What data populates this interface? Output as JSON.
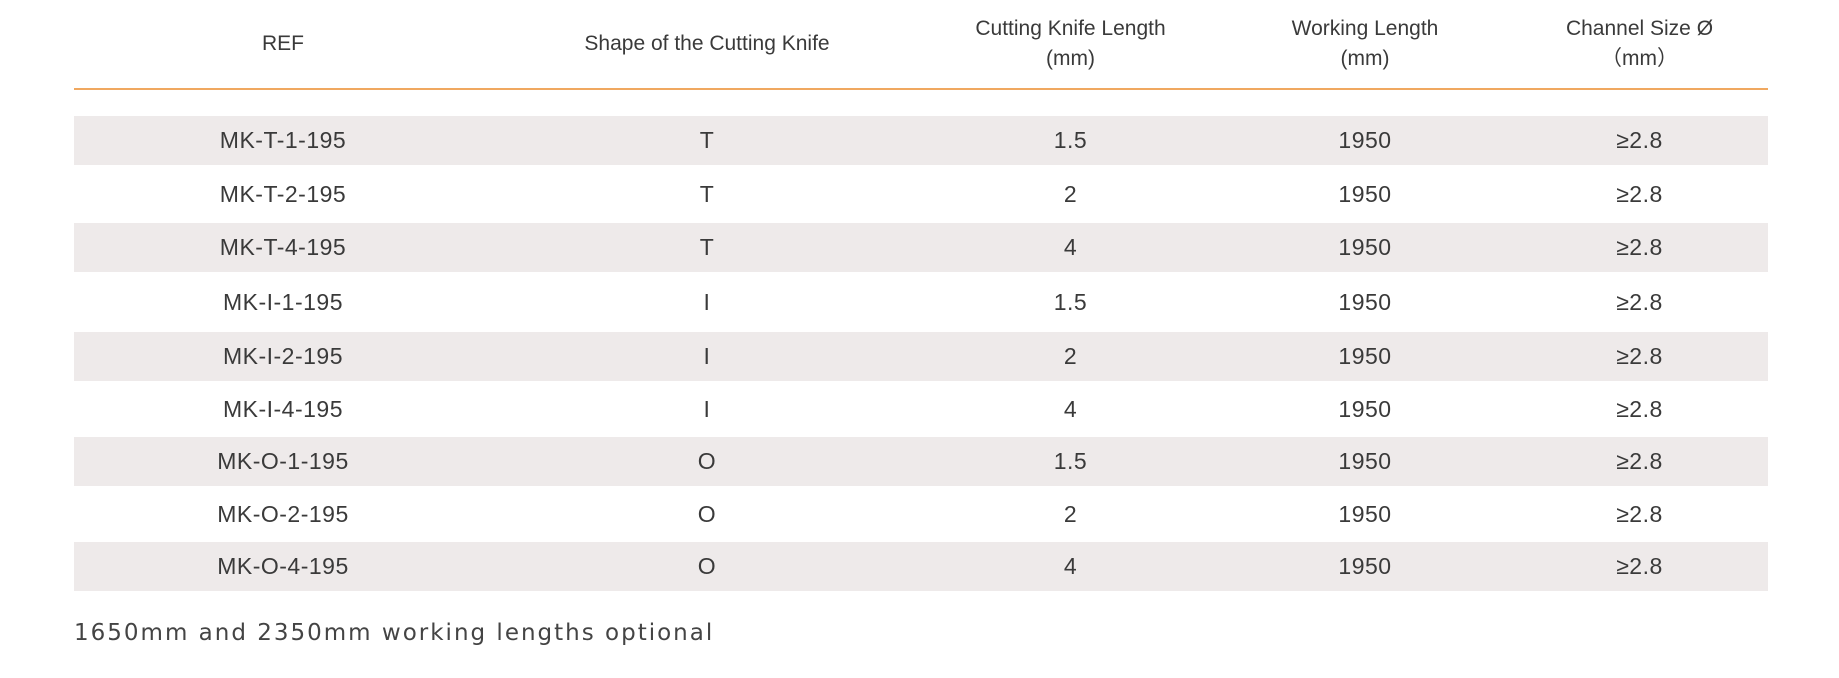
{
  "table": {
    "headers": [
      "REF",
      "Shape of the Cutting Knife",
      "Cutting Knife Length\n(mm)",
      "Working Length\n(mm)",
      "Channel Size Ø\n（mm）"
    ],
    "rows": [
      [
        "MK-T-1-195",
        "T",
        "1.5",
        "1950",
        "≥2.8"
      ],
      [
        "MK-T-2-195",
        "T",
        "2",
        "1950",
        "≥2.8"
      ],
      [
        "MK-T-4-195",
        "T",
        "4",
        "1950",
        "≥2.8"
      ],
      [
        "MK-I-1-195",
        "I",
        "1.5",
        "1950",
        "≥2.8"
      ],
      [
        "MK-I-2-195",
        "I",
        "2",
        "1950",
        "≥2.8"
      ],
      [
        "MK-I-4-195",
        "I",
        "4",
        "1950",
        "≥2.8"
      ],
      [
        "MK-O-1-195",
        "O",
        "1.5",
        "1950",
        "≥2.8"
      ],
      [
        "MK-O-2-195",
        "O",
        "2",
        "1950",
        "≥2.8"
      ],
      [
        "MK-O-4-195",
        "O",
        "4",
        "1950",
        "≥2.8"
      ]
    ]
  },
  "footnote": "1650mm and 2350mm working lengths optional",
  "colors": {
    "header_rule": "#f0a860",
    "shaded_row": "#eeeaea",
    "text": "#3a3a3a"
  }
}
